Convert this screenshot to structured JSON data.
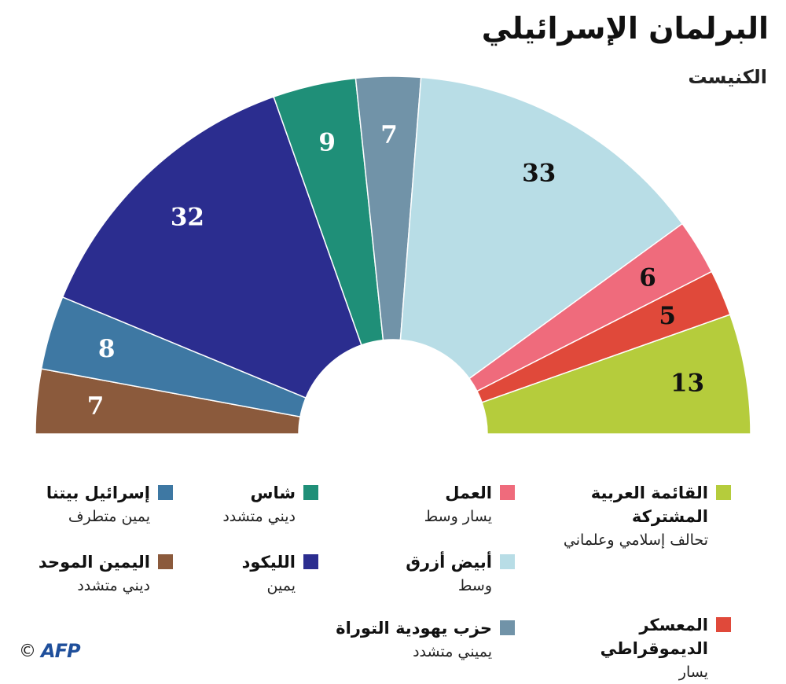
{
  "title": "البرلمان الإسرائيلي",
  "subtitle": "الكنيست",
  "credit": {
    "copyright": "©",
    "logo": "AFP"
  },
  "chart_data": {
    "type": "pie",
    "layout": "semicircle",
    "order": "left-to-right",
    "total": 120,
    "slices": [
      {
        "name": "اليمين الموحد",
        "value": 7,
        "color": "#8b5a3c",
        "label_color": "#ffffff"
      },
      {
        "name": "إسرائيل بيتنا",
        "value": 8,
        "color": "#3e78a3",
        "label_color": "#ffffff"
      },
      {
        "name": "الليكود",
        "value": 32,
        "color": "#2b2d8f",
        "label_color": "#ffffff"
      },
      {
        "name": "شاس",
        "value": 9,
        "color": "#1f8f78",
        "label_color": "#ffffff"
      },
      {
        "name": "حزب يهودية التوراة",
        "value": 7,
        "color": "#7193a8",
        "label_color": "#ffffff"
      },
      {
        "name": "أبيض أزرق",
        "value": 33,
        "color": "#b8dde6",
        "label_color": "#111111"
      },
      {
        "name": "العمل",
        "value": 6,
        "color": "#ef6b7c",
        "label_color": "#111111"
      },
      {
        "name": "المعسكر الديموقراطي",
        "value": 5,
        "color": "#e0493a",
        "label_color": "#111111"
      },
      {
        "name": "القائمة العربية المشتركة",
        "value": 13,
        "color": "#b5cc3c",
        "label_color": "#111111"
      }
    ]
  },
  "legend": [
    {
      "key": "joint-list",
      "name": "القائمة العربية المشتركة",
      "desc": "تحالف إسلامي وعلماني",
      "color": "#b5cc3c"
    },
    {
      "key": "democratic-camp",
      "name": "المعسكر الديموقراطي",
      "desc": "يسار",
      "color": "#e0493a"
    },
    {
      "key": "labor",
      "name": "العمل",
      "desc": "يسار وسط",
      "color": "#ef6b7c"
    },
    {
      "key": "blue-white",
      "name": "أبيض أزرق",
      "desc": "وسط",
      "color": "#b8dde6"
    },
    {
      "key": "utj",
      "name": "حزب يهودية التوراة",
      "desc": "يميني متشدد",
      "color": "#7193a8"
    },
    {
      "key": "shas",
      "name": "شاس",
      "desc": "ديني متشدد",
      "color": "#1f8f78"
    },
    {
      "key": "likud",
      "name": "الليكود",
      "desc": "يمين",
      "color": "#2b2d8f"
    },
    {
      "key": "yisrael-beiteinu",
      "name": "إسرائيل بيتنا",
      "desc": "يمين متطرف",
      "color": "#3e78a3"
    },
    {
      "key": "united-right",
      "name": "اليمين الموحد",
      "desc": "ديني متشدد",
      "color": "#8b5a3c"
    }
  ]
}
